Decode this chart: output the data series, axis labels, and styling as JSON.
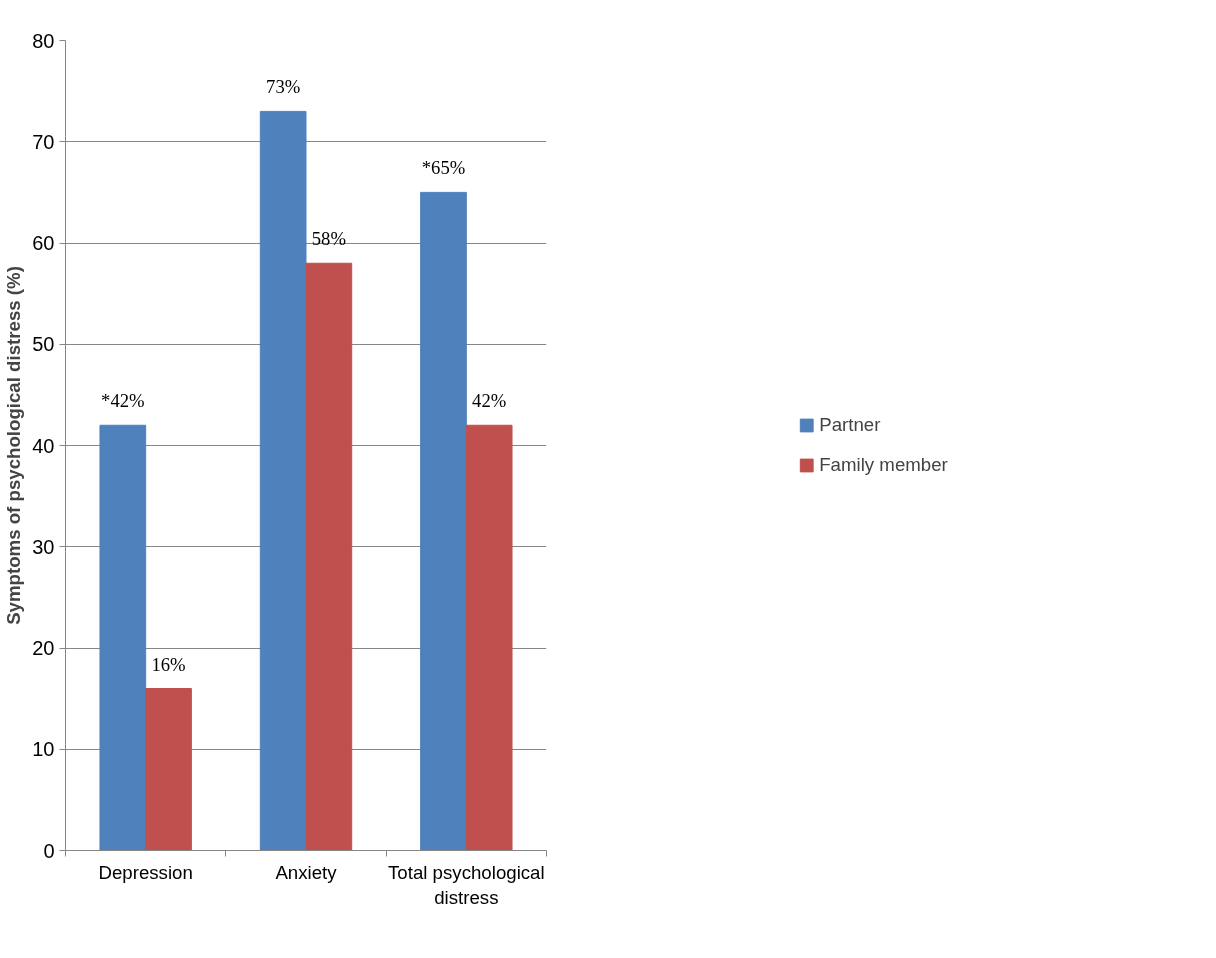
{
  "chart_data": {
    "type": "bar",
    "ylabel": "Symptoms of psychological distress (%)",
    "categories": [
      "Depression",
      "Anxiety",
      "Total psychological distress"
    ],
    "series": [
      {
        "name": "Partner",
        "color": "#4f81bd",
        "values": [
          42,
          73,
          65
        ],
        "value_labels": [
          "*42%",
          "73%",
          "*65%"
        ]
      },
      {
        "name": "Family member",
        "color": "#c0504d",
        "values": [
          16,
          58,
          42
        ],
        "value_labels": [
          "16%",
          "58%",
          "42%"
        ]
      }
    ],
    "ylim": [
      0,
      80
    ],
    "yticks": [
      0,
      10,
      20,
      30,
      40,
      50,
      60,
      70,
      80
    ],
    "grid": "y",
    "legend": "right"
  }
}
